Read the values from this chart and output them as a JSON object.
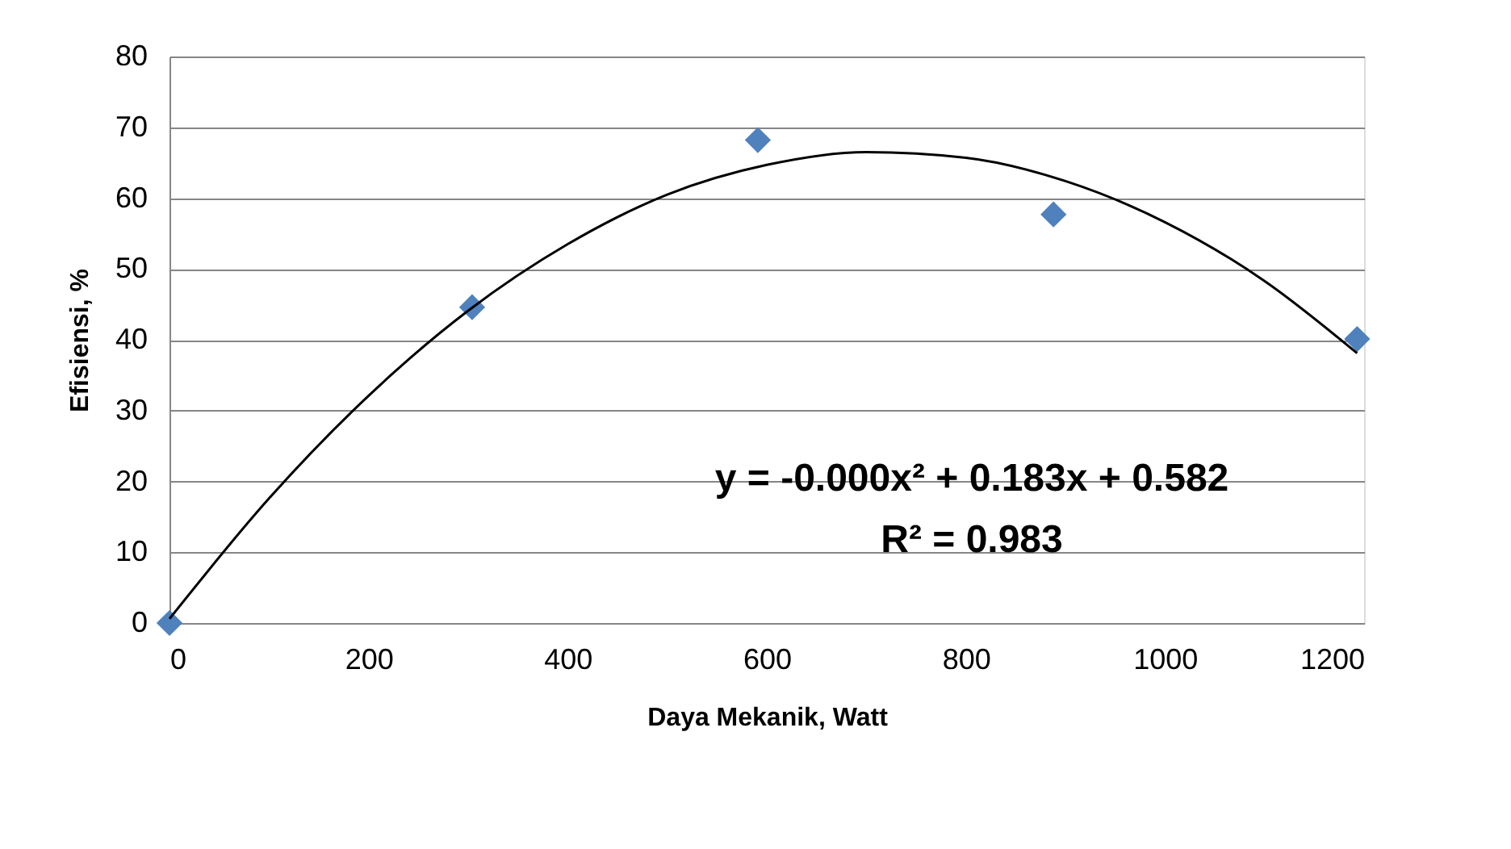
{
  "chart_data": {
    "type": "scatter",
    "xlabel": "Daya Mekanik,  Watt",
    "ylabel": "Efisiensi, %",
    "xlim": [
      0,
      1200
    ],
    "xticks": [
      0,
      200,
      400,
      600,
      800,
      1000,
      1200
    ],
    "ylim": [
      0,
      80
    ],
    "yticks": [
      0,
      10,
      20,
      30,
      40,
      50,
      60,
      70,
      80
    ],
    "grid": "y",
    "series": [
      {
        "type": "scatter",
        "marker": "diamond",
        "color": "#4f81bd",
        "x": [
          0,
          304,
          591,
          888,
          1193
        ],
        "values": [
          0,
          44.6,
          68.2,
          57.7,
          40.1
        ]
      },
      {
        "type": "line",
        "marker": "none",
        "line_style": "solid",
        "color": "#000000",
        "x": [
          0,
          100,
          200,
          300,
          400,
          500,
          600,
          700,
          800,
          900,
          1000,
          1100,
          1193
        ],
        "values": [
          0.6,
          17.6,
          32.1,
          44.1,
          53.5,
          60.5,
          64.7,
          66.5,
          65.7,
          62.4,
          56.6,
          48.3,
          38.1
        ]
      }
    ],
    "annotations": [
      "y = -0.000x² + 0.183x + 0.582",
      "R² = 0.983"
    ]
  }
}
